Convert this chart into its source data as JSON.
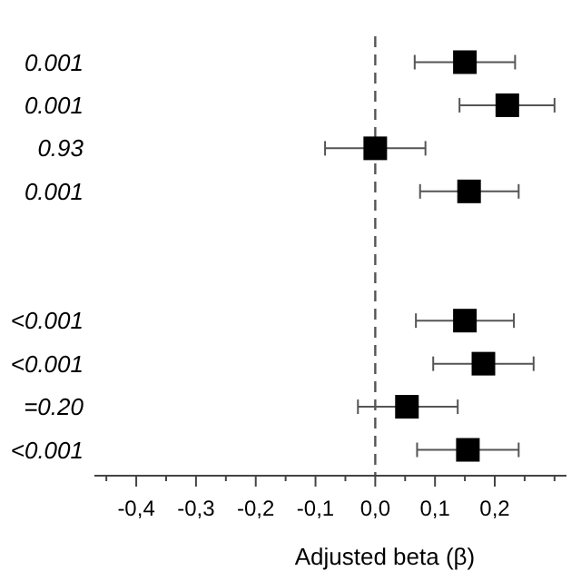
{
  "chart_data": {
    "type": "scatter",
    "orientation": "horizontal",
    "xlabel": "Adjusted beta (β)",
    "categories": [
      "0.001",
      "0.001",
      "0.93",
      "0.001",
      null,
      null,
      "<0.001",
      "<0.001",
      "=0.20",
      "<0.001"
    ],
    "values": [
      0.15,
      0.221,
      0.0,
      0.157,
      null,
      null,
      0.15,
      0.181,
      0.053,
      0.155
    ],
    "errors": [
      [
        0.066,
        0.234
      ],
      [
        0.141,
        0.3
      ],
      [
        -0.084,
        0.084
      ],
      [
        0.075,
        0.24
      ],
      null,
      null,
      [
        0.068,
        0.232
      ],
      [
        0.097,
        0.265
      ],
      [
        -0.029,
        0.138
      ],
      [
        0.07,
        0.24
      ]
    ],
    "color": "#000000",
    "marker": "square",
    "grid": false,
    "xlim": [
      -0.47,
      0.32
    ],
    "xticks": [
      {
        "value": -0.45,
        "label": null
      },
      {
        "value": -0.4,
        "label": "-0,4"
      },
      {
        "value": -0.35,
        "label": null
      },
      {
        "value": -0.3,
        "label": "-0,3"
      },
      {
        "value": -0.25,
        "label": null
      },
      {
        "value": -0.2,
        "label": "-0,2"
      },
      {
        "value": -0.15,
        "label": null
      },
      {
        "value": -0.1,
        "label": "-0,1"
      },
      {
        "value": -0.05,
        "label": null
      },
      {
        "value": 0,
        "label": "0,0"
      },
      {
        "value": 0.05,
        "label": null
      },
      {
        "value": 0.1,
        "label": "0,1"
      },
      {
        "value": 0.15,
        "label": null
      },
      {
        "value": 0.2,
        "label": "0,2"
      },
      {
        "value": 0.25,
        "label": null
      },
      {
        "value": 0.3,
        "label": null
      }
    ],
    "ref_lines": [
      {
        "axis": "x",
        "value": 0,
        "line_style": "dashed",
        "color": "#555555"
      }
    ]
  }
}
